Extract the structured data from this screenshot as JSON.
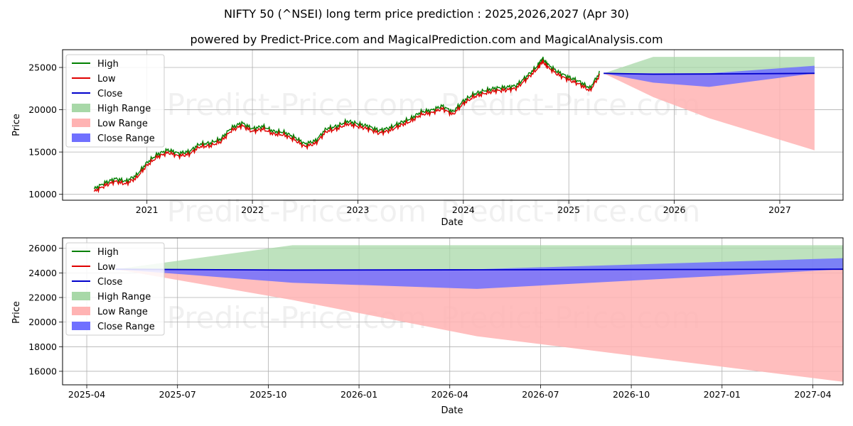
{
  "title": "NIFTY 50 (^NSEI) long term price prediction : 2025,2026,2027 (Apr 30)",
  "subtitle": "powered by Predict-Price.com and MagicalPrediction.com and MagicalAnalysis.com",
  "watermark": "Predict-Price.com",
  "colors": {
    "high": "#008000",
    "low": "#e00000",
    "close": "#0000cc",
    "high_range": "#a8d8a8",
    "low_range": "#ffb3b3",
    "close_range": "#7070ff"
  },
  "legend": [
    "High",
    "Low",
    "Close",
    "High Range",
    "Low Range",
    "Close Range"
  ],
  "chart_data": [
    {
      "type": "line",
      "xlabel": "Date",
      "ylabel": "Price",
      "x_ticks": [
        "2021",
        "2022",
        "2023",
        "2024",
        "2025",
        "2026",
        "2027"
      ],
      "y_ticks": [
        "10000",
        "15000",
        "20000",
        "25000"
      ],
      "xlim": [
        2020.2,
        2027.6
      ],
      "ylim": [
        9300,
        27100
      ],
      "grid": true,
      "legend_position": "top-left",
      "history": {
        "dates": [
          2020.5,
          2020.6,
          2020.7,
          2020.8,
          2020.9,
          2021.0,
          2021.1,
          2021.2,
          2021.3,
          2021.4,
          2021.5,
          2021.6,
          2021.7,
          2021.8,
          2021.9,
          2022.0,
          2022.1,
          2022.2,
          2022.3,
          2022.4,
          2022.5,
          2022.6,
          2022.7,
          2022.8,
          2022.9,
          2023.0,
          2023.1,
          2023.2,
          2023.3,
          2023.4,
          2023.5,
          2023.6,
          2023.7,
          2023.8,
          2023.9,
          2024.0,
          2024.1,
          2024.2,
          2024.3,
          2024.4,
          2024.5,
          2024.6,
          2024.7,
          2024.75,
          2024.8,
          2024.9,
          2025.0,
          2025.1,
          2025.2,
          2025.3
        ],
        "close": [
          10400,
          11100,
          11600,
          11300,
          12000,
          13500,
          14500,
          15000,
          14600,
          14800,
          15700,
          15800,
          16300,
          17600,
          18200,
          17500,
          17800,
          17200,
          17100,
          16500,
          15700,
          16100,
          17500,
          17800,
          18400,
          18100,
          17800,
          17300,
          17600,
          18200,
          18700,
          19500,
          19700,
          20200,
          19500,
          20800,
          21600,
          22000,
          22300,
          22400,
          22600,
          23700,
          24900,
          25800,
          25100,
          24200,
          23600,
          23100,
          22300,
          24300
        ],
        "high_offset": 250,
        "low_offset": 250
      },
      "forecast": {
        "dates": [
          2025.33,
          2025.8,
          2026.33,
          2027.33
        ],
        "close": [
          24300,
          24200,
          24230,
          24300
        ],
        "high_range": [
          [
            24300,
            24300
          ],
          [
            26250,
            24300
          ],
          [
            26250,
            24300
          ],
          [
            26250,
            24300
          ]
        ],
        "low_range": [
          [
            24300,
            24300
          ],
          [
            21500,
            24300
          ],
          [
            19000,
            24300
          ],
          [
            15200,
            24300
          ]
        ],
        "close_range": [
          [
            24300,
            24300
          ],
          [
            23200,
            24300
          ],
          [
            22700,
            24300
          ],
          [
            24300,
            25200
          ]
        ]
      }
    },
    {
      "type": "line",
      "xlabel": "Date",
      "ylabel": "Price",
      "x_ticks": [
        "2025-04",
        "2025-07",
        "2025-10",
        "2026-01",
        "2026-04",
        "2026-07",
        "2026-10",
        "2027-01",
        "2027-04"
      ],
      "y_ticks": [
        "16000",
        "18000",
        "20000",
        "22000",
        "24000",
        "26000"
      ],
      "xlim_months": [
        -0.8,
        25.0
      ],
      "ylim": [
        14900,
        26850
      ],
      "grid": true,
      "legend_position": "top-left",
      "forecast": {
        "dates_months": [
          0.95,
          6.8,
          12.9,
          25.0
        ],
        "close": [
          24300,
          24230,
          24250,
          24300
        ],
        "high_range": [
          [
            24300,
            24300
          ],
          [
            26250,
            24300
          ],
          [
            26250,
            24300
          ],
          [
            26250,
            24300
          ]
        ],
        "low_range": [
          [
            24300,
            24300
          ],
          [
            21800,
            24300
          ],
          [
            18850,
            24300
          ],
          [
            15150,
            24300
          ]
        ],
        "close_range": [
          [
            24300,
            24300
          ],
          [
            23200,
            24300
          ],
          [
            22700,
            24300
          ],
          [
            24300,
            25200
          ]
        ]
      }
    }
  ]
}
